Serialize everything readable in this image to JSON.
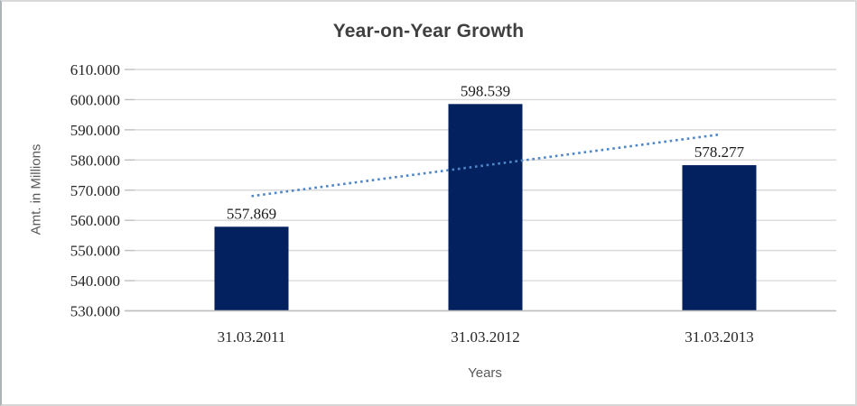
{
  "chart": {
    "title": "Year-on-Year Growth",
    "y_axis_title": "Amt. in Millions",
    "x_axis_title": "Years"
  },
  "chart_data": {
    "type": "bar",
    "title": "Year-on-Year Growth",
    "xlabel": "Years",
    "ylabel": "Amt. in Millions",
    "categories": [
      "31.03.2011",
      "31.03.2012",
      "31.03.2013"
    ],
    "values": [
      557.869,
      598.539,
      578.277
    ],
    "data_labels": [
      "557.869",
      "598.539",
      "578.277"
    ],
    "ylim": [
      530,
      610
    ],
    "ytick_step": 10,
    "ytick_labels": [
      "530.000",
      "540.000",
      "550.000",
      "560.000",
      "570.000",
      "580.000",
      "590.000",
      "600.000",
      "610.000"
    ],
    "grid": true,
    "legend": false,
    "trendline": {
      "type": "linear",
      "style": "dotted",
      "start_value": 568.02,
      "end_value": 588.43
    },
    "colors": {
      "bar": "#02215E",
      "trendline": "#4E86C8",
      "gridline": "#D9D9D9",
      "axis_line": "#BFBFBF",
      "title_text": "#3F3F3F",
      "label_text": "#262626",
      "axis_title_text": "#595959"
    }
  }
}
